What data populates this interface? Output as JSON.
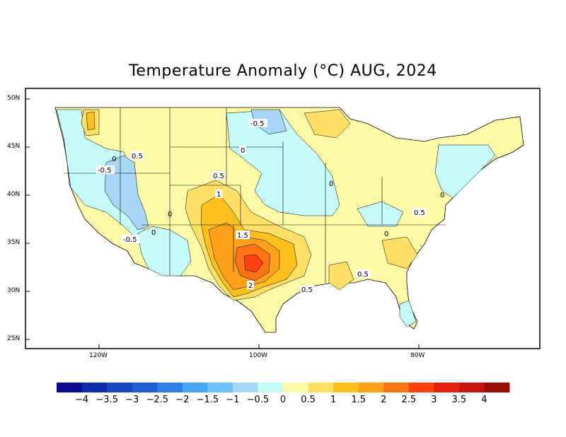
{
  "title": "Temperature Anomaly (°C) AUG, 2024",
  "lat_labels": [
    "50N",
    "45N",
    "40N",
    "35N",
    "30N",
    "25N"
  ],
  "lon_labels": [
    "120W",
    "100W",
    "80W"
  ],
  "contour_labels": [
    "-0.5",
    "0",
    "0.5",
    "1",
    "1.5",
    "2",
    "-0.5",
    "0",
    "0.5",
    "-0.5",
    "0",
    "0",
    "0.5",
    "0",
    "0.5",
    "0",
    "0.5",
    "0.5",
    "0"
  ],
  "colorbar": {
    "colors": [
      "#0a0a8c",
      "#0d2ca6",
      "#1447bf",
      "#1e5fd4",
      "#2f7de6",
      "#48a5f5",
      "#6cc2fa",
      "#a6d8f5",
      "#c7fbfb",
      "#fffaa8",
      "#ffe066",
      "#ffc01f",
      "#ffa11a",
      "#ff7516",
      "#ff4210",
      "#e61f0f",
      "#c8140e",
      "#9a0b0a"
    ],
    "tick_labels": [
      "-4",
      "-3.5",
      "-3",
      "-2.5",
      "-2",
      "-1.5",
      "-1",
      "-0.5",
      "0",
      "0.5",
      "1",
      "1.5",
      "2",
      "2.5",
      "3",
      "3.5",
      "4"
    ]
  }
}
